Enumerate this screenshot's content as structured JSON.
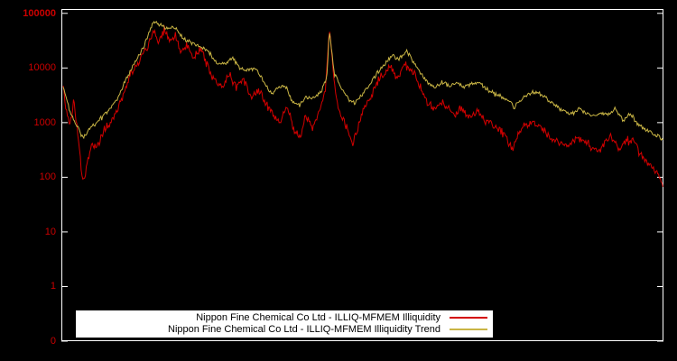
{
  "chart_data": {
    "type": "line",
    "title": "",
    "background": "#000000",
    "frame_color": "#ffffff",
    "tick_label_color": "#cc0000",
    "yscale": "log",
    "ylim": [
      0.1,
      120000
    ],
    "xlabel": "",
    "ylabel": "",
    "grid": false,
    "legend_position": "bottom-center",
    "yticks": [
      {
        "label": "100000",
        "value": 100000
      },
      {
        "label": "10000",
        "value": 10000
      },
      {
        "label": "1000",
        "value": 1000
      },
      {
        "label": "100",
        "value": 100
      },
      {
        "label": "10",
        "value": 10
      },
      {
        "label": "1",
        "value": 1
      },
      {
        "label": "0",
        "value": 0.1
      }
    ],
    "series": [
      {
        "name": "Nippon Fine Chemical Co Ltd - ILLIQ-MFMEM Illiquidity",
        "color": "#d40000",
        "jitter_log10": 0.1,
        "anchors": {
          "x": [
            0.003,
            0.009,
            0.015,
            0.021,
            0.03,
            0.036,
            0.043,
            0.051,
            0.06,
            0.07,
            0.081,
            0.093,
            0.105,
            0.117,
            0.129,
            0.141,
            0.153,
            0.162,
            0.171,
            0.18,
            0.189,
            0.198,
            0.21,
            0.219,
            0.231,
            0.243,
            0.255,
            0.267,
            0.279,
            0.291,
            0.303,
            0.315,
            0.327,
            0.339,
            0.351,
            0.363,
            0.375,
            0.387,
            0.396,
            0.405,
            0.417,
            0.429,
            0.438,
            0.445,
            0.453,
            0.462,
            0.474,
            0.483,
            0.492,
            0.501,
            0.513,
            0.525,
            0.537,
            0.547,
            0.558,
            0.57,
            0.582,
            0.594,
            0.606,
            0.618,
            0.63,
            0.642,
            0.654,
            0.666,
            0.678,
            0.69,
            0.702,
            0.714,
            0.726,
            0.738,
            0.75,
            0.759,
            0.771,
            0.783,
            0.795,
            0.807,
            0.819,
            0.831,
            0.843,
            0.855,
            0.867,
            0.879,
            0.891,
            0.903,
            0.914,
            0.926,
            0.938,
            0.951,
            0.96,
            0.969,
            0.978,
            0.987,
            0.994,
            0.999
          ],
          "v": [
            5500,
            1300,
            900,
            2600,
            300,
            80,
            180,
            420,
            350,
            700,
            1000,
            1600,
            3800,
            8000,
            14000,
            22000,
            45000,
            30000,
            50000,
            28000,
            42000,
            20000,
            26000,
            15000,
            22000,
            11000,
            6000,
            4200,
            7500,
            4500,
            6500,
            2800,
            4200,
            2200,
            1400,
            1000,
            2000,
            700,
            480,
            1300,
            800,
            1700,
            3500,
            60000,
            5000,
            1500,
            800,
            420,
            700,
            1800,
            2800,
            5500,
            8000,
            11000,
            6500,
            12000,
            9000,
            5000,
            2600,
            1700,
            2300,
            1900,
            1400,
            1900,
            1200,
            1600,
            1100,
            950,
            800,
            550,
            300,
            650,
            900,
            1000,
            800,
            600,
            480,
            420,
            380,
            550,
            450,
            380,
            300,
            420,
            550,
            320,
            450,
            480,
            260,
            220,
            170,
            130,
            100,
            75
          ]
        }
      },
      {
        "name": "Nippon Fine Chemical Co Ltd - ILLIQ-MFMEM Illiquidity Trend",
        "color": "#c9b545",
        "jitter_log10": 0.05,
        "anchors": {
          "x": [
            0.003,
            0.015,
            0.027,
            0.036,
            0.048,
            0.063,
            0.078,
            0.093,
            0.108,
            0.123,
            0.138,
            0.153,
            0.165,
            0.177,
            0.189,
            0.201,
            0.213,
            0.228,
            0.243,
            0.258,
            0.273,
            0.285,
            0.297,
            0.309,
            0.321,
            0.333,
            0.348,
            0.36,
            0.372,
            0.384,
            0.396,
            0.408,
            0.42,
            0.432,
            0.441,
            0.445,
            0.453,
            0.465,
            0.477,
            0.489,
            0.501,
            0.513,
            0.525,
            0.537,
            0.549,
            0.561,
            0.573,
            0.585,
            0.597,
            0.609,
            0.621,
            0.633,
            0.645,
            0.657,
            0.669,
            0.681,
            0.693,
            0.705,
            0.717,
            0.729,
            0.741,
            0.753,
            0.765,
            0.777,
            0.789,
            0.801,
            0.813,
            0.825,
            0.837,
            0.849,
            0.861,
            0.873,
            0.885,
            0.897,
            0.909,
            0.921,
            0.933,
            0.945,
            0.957,
            0.969,
            0.981,
            0.993,
            0.999
          ],
          "v": [
            4500,
            1500,
            800,
            520,
            800,
            1100,
            1700,
            2800,
            6500,
            13000,
            26000,
            70000,
            60000,
            52000,
            55000,
            36000,
            30000,
            26000,
            20000,
            13000,
            12000,
            15000,
            10000,
            8800,
            10000,
            6500,
            3400,
            4200,
            4800,
            2400,
            2100,
            3000,
            2700,
            3800,
            7000,
            50000,
            8000,
            4200,
            2700,
            2300,
            3400,
            5200,
            8500,
            12000,
            17000,
            14000,
            20000,
            13000,
            8000,
            5200,
            4300,
            5600,
            4600,
            5400,
            4400,
            5200,
            5600,
            4200,
            3400,
            3000,
            2600,
            1900,
            2800,
            3400,
            3700,
            3000,
            2300,
            1900,
            1600,
            1500,
            1800,
            1500,
            1300,
            1500,
            1400,
            1800,
            1100,
            1500,
            900,
            780,
            650,
            560,
            500
          ]
        }
      }
    ]
  }
}
